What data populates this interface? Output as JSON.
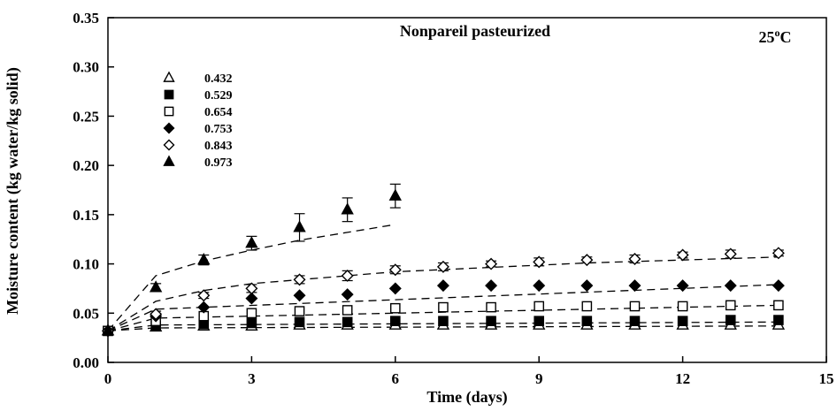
{
  "chart_data": {
    "type": "scatter",
    "title": "Nonpareil pasteurized",
    "annotation": "25",
    "annotation_superscript": "o",
    "annotation_unit": "C",
    "xlabel": "Time (days)",
    "ylabel": "Moisture content (kg water/kg solid)",
    "xlim": [
      0,
      15
    ],
    "ylim": [
      0,
      0.35
    ],
    "x_ticks": [
      "0",
      "3",
      "6",
      "9",
      "12",
      "15"
    ],
    "y_ticks": [
      "0.00",
      "0.05",
      "0.10",
      "0.15",
      "0.20",
      "0.25",
      "0.30",
      "0.35"
    ],
    "grid": false,
    "legend_position": "top-left",
    "series": [
      {
        "name": "0.432",
        "marker": "triangle-open",
        "x": [
          0,
          1,
          2,
          3,
          4,
          5,
          6,
          7,
          8,
          9,
          10,
          11,
          12,
          13,
          14
        ],
        "y": [
          0.032,
          0.036,
          0.037,
          0.037,
          0.038,
          0.038,
          0.038,
          0.038,
          0.038,
          0.038,
          0.038,
          0.038,
          0.038,
          0.038,
          0.038
        ],
        "fit": [
          [
            0,
            0.032
          ],
          [
            1,
            0.035
          ],
          [
            14,
            0.037
          ]
        ]
      },
      {
        "name": "0.529",
        "marker": "square-filled",
        "x": [
          0,
          1,
          2,
          3,
          4,
          5,
          6,
          7,
          8,
          9,
          10,
          11,
          12,
          13,
          14
        ],
        "y": [
          0.032,
          0.037,
          0.039,
          0.04,
          0.041,
          0.041,
          0.042,
          0.042,
          0.042,
          0.042,
          0.042,
          0.042,
          0.042,
          0.043,
          0.043
        ],
        "fit": [
          [
            0,
            0.032
          ],
          [
            1,
            0.038
          ],
          [
            14,
            0.041
          ]
        ]
      },
      {
        "name": "0.654",
        "marker": "square-open",
        "x": [
          0,
          1,
          2,
          3,
          4,
          5,
          6,
          7,
          8,
          9,
          10,
          11,
          12,
          13,
          14
        ],
        "y": [
          0.032,
          0.042,
          0.047,
          0.05,
          0.052,
          0.053,
          0.055,
          0.056,
          0.056,
          0.057,
          0.057,
          0.057,
          0.057,
          0.058,
          0.058
        ],
        "fit": [
          [
            0,
            0.032
          ],
          [
            1,
            0.045
          ],
          [
            14,
            0.058
          ]
        ]
      },
      {
        "name": "0.753",
        "marker": "diamond-filled",
        "x": [
          0,
          1,
          2,
          3,
          4,
          5,
          6,
          7,
          8,
          9,
          10,
          11,
          12,
          13,
          14
        ],
        "y": [
          0.032,
          0.047,
          0.056,
          0.065,
          0.068,
          0.069,
          0.075,
          0.078,
          0.078,
          0.078,
          0.078,
          0.078,
          0.078,
          0.078,
          0.078
        ],
        "fit": [
          [
            0,
            0.032
          ],
          [
            1,
            0.054
          ],
          [
            14,
            0.079
          ]
        ]
      },
      {
        "name": "0.843",
        "marker": "diamond-open",
        "x": [
          0,
          1,
          2,
          3,
          4,
          5,
          6,
          7,
          8,
          9,
          10,
          11,
          12,
          13,
          14
        ],
        "y": [
          0.032,
          0.049,
          0.068,
          0.075,
          0.084,
          0.088,
          0.094,
          0.097,
          0.1,
          0.102,
          0.104,
          0.105,
          0.109,
          0.11,
          0.111
        ],
        "err": [
          0,
          0.003,
          0.003,
          0.004,
          0.004,
          0.005,
          0.004,
          0.004,
          0.003,
          0.004,
          0.003,
          0.004,
          0.003,
          0.004,
          0.003
        ],
        "fit": [
          [
            0,
            0.032
          ],
          [
            1,
            0.062
          ],
          [
            2,
            0.073
          ],
          [
            3,
            0.08
          ],
          [
            6,
            0.092
          ],
          [
            10,
            0.101
          ],
          [
            14,
            0.107
          ]
        ]
      },
      {
        "name": "0.973",
        "marker": "triangle-filled",
        "x": [
          0,
          1,
          2,
          3,
          4,
          5,
          6
        ],
        "y": [
          0.032,
          0.076,
          0.104,
          0.121,
          0.137,
          0.155,
          0.169
        ],
        "err": [
          0,
          0.004,
          0.005,
          0.007,
          0.014,
          0.012,
          0.012
        ],
        "fit": [
          [
            0,
            0.032
          ],
          [
            1,
            0.088
          ],
          [
            2,
            0.103
          ],
          [
            3,
            0.114
          ],
          [
            4,
            0.124
          ],
          [
            5,
            0.132
          ],
          [
            6,
            0.14
          ]
        ]
      }
    ]
  }
}
